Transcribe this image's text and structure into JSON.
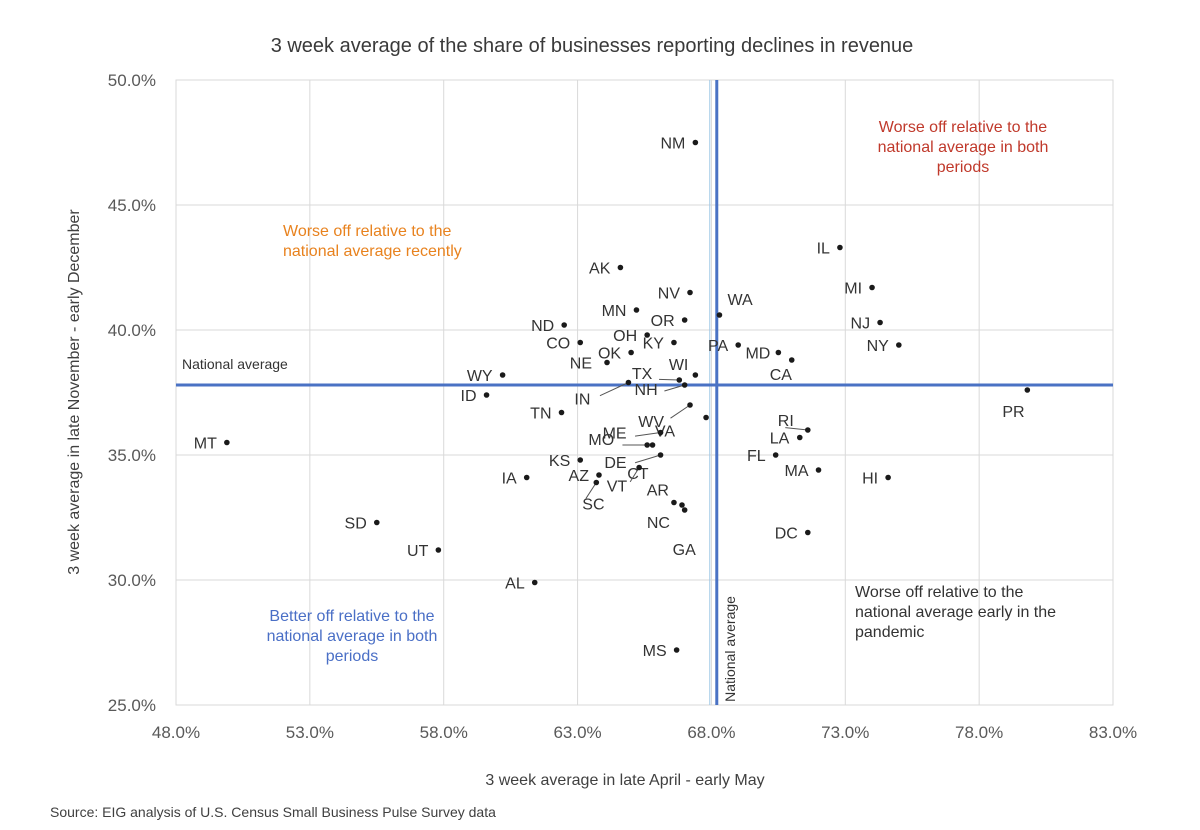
{
  "chart_data": {
    "type": "scatter",
    "title": "3 week average of the share of businesses reporting declines in revenue",
    "xlabel": "3 week average in late April - early May",
    "ylabel": "3 week average in late November - early December",
    "xlim": [
      48,
      83
    ],
    "ylim": [
      25,
      50
    ],
    "x_ticks": [
      48,
      53,
      58,
      63,
      68,
      73,
      78,
      83
    ],
    "y_ticks": [
      25,
      30,
      35,
      40,
      45,
      50
    ],
    "x_tick_labels": [
      "48.0%",
      "53.0%",
      "58.0%",
      "63.0%",
      "68.0%",
      "73.0%",
      "78.0%",
      "83.0%"
    ],
    "y_tick_labels": [
      "25.0%",
      "30.0%",
      "35.0%",
      "40.0%",
      "45.0%",
      "50.0%"
    ],
    "grid": true,
    "national_average": {
      "x": 68.2,
      "y": 37.8,
      "h_label": "National average",
      "v_label": "National average"
    },
    "points": [
      {
        "label": "NM",
        "x": 67.4,
        "y": 47.5
      },
      {
        "label": "IL",
        "x": 72.8,
        "y": 43.3
      },
      {
        "label": "AK",
        "x": 64.6,
        "y": 42.5
      },
      {
        "label": "MI",
        "x": 74.0,
        "y": 41.7
      },
      {
        "label": "NV",
        "x": 67.2,
        "y": 41.5
      },
      {
        "label": "WA",
        "x": 68.3,
        "y": 40.6
      },
      {
        "label": "MN",
        "x": 65.2,
        "y": 40.8
      },
      {
        "label": "NJ",
        "x": 74.3,
        "y": 40.3
      },
      {
        "label": "OR",
        "x": 67.0,
        "y": 40.4
      },
      {
        "label": "ND",
        "x": 62.5,
        "y": 40.2
      },
      {
        "label": "OH",
        "x": 65.6,
        "y": 39.8
      },
      {
        "label": "CO",
        "x": 63.1,
        "y": 39.5
      },
      {
        "label": "PA",
        "x": 69.0,
        "y": 39.4
      },
      {
        "label": "NY",
        "x": 75.0,
        "y": 39.4
      },
      {
        "label": "OK",
        "x": 65.0,
        "y": 39.1
      },
      {
        "label": "KY",
        "x": 66.6,
        "y": 39.5
      },
      {
        "label": "MD",
        "x": 70.5,
        "y": 39.1
      },
      {
        "label": "CA",
        "x": 71.0,
        "y": 38.8
      },
      {
        "label": "NE",
        "x": 64.1,
        "y": 38.7
      },
      {
        "label": "WY",
        "x": 60.2,
        "y": 38.2
      },
      {
        "label": "TX",
        "x": 66.8,
        "y": 38.0
      },
      {
        "label": "WI",
        "x": 67.4,
        "y": 38.2
      },
      {
        "label": "NH",
        "x": 67.0,
        "y": 37.8
      },
      {
        "label": "IN",
        "x": 64.9,
        "y": 37.9
      },
      {
        "label": "PR",
        "x": 79.8,
        "y": 37.6
      },
      {
        "label": "ID",
        "x": 59.6,
        "y": 37.4
      },
      {
        "label": "WV",
        "x": 67.2,
        "y": 37.0
      },
      {
        "label": "TN",
        "x": 62.4,
        "y": 36.7
      },
      {
        "label": "VA",
        "x": 67.8,
        "y": 36.5
      },
      {
        "label": "RI",
        "x": 71.6,
        "y": 36.0
      },
      {
        "label": "ME",
        "x": 66.1,
        "y": 35.9
      },
      {
        "label": "LA",
        "x": 71.3,
        "y": 35.7
      },
      {
        "label": "CT",
        "x": 65.8,
        "y": 35.4
      },
      {
        "label": "MO",
        "x": 65.6,
        "y": 35.4
      },
      {
        "label": "MT",
        "x": 49.9,
        "y": 35.5
      },
      {
        "label": "DE",
        "x": 66.1,
        "y": 35.0
      },
      {
        "label": "FL",
        "x": 70.4,
        "y": 35.0
      },
      {
        "label": "KS",
        "x": 63.1,
        "y": 34.8
      },
      {
        "label": "VT",
        "x": 65.3,
        "y": 34.5
      },
      {
        "label": "MA",
        "x": 72.0,
        "y": 34.4
      },
      {
        "label": "IA",
        "x": 61.1,
        "y": 34.1
      },
      {
        "label": "HI",
        "x": 74.6,
        "y": 34.1
      },
      {
        "label": "AZ",
        "x": 63.8,
        "y": 34.2
      },
      {
        "label": "SC",
        "x": 63.7,
        "y": 33.9
      },
      {
        "label": "AR",
        "x": 66.6,
        "y": 33.1
      },
      {
        "label": "NC",
        "x": 66.9,
        "y": 33.0
      },
      {
        "label": "GA",
        "x": 67.0,
        "y": 32.8
      },
      {
        "label": "SD",
        "x": 55.5,
        "y": 32.3
      },
      {
        "label": "DC",
        "x": 71.6,
        "y": 31.9
      },
      {
        "label": "UT",
        "x": 57.8,
        "y": 31.2
      },
      {
        "label": "AL",
        "x": 61.4,
        "y": 29.9
      },
      {
        "label": "MS",
        "x": 66.7,
        "y": 27.2
      }
    ],
    "annotations": [
      {
        "id": "top-right",
        "lines": [
          "Worse off relative to the",
          "national average in both",
          "periods"
        ],
        "color": "#c0392b"
      },
      {
        "id": "top-left",
        "lines": [
          "Worse off relative to the",
          "national average recently"
        ],
        "color": "#e8821e"
      },
      {
        "id": "bottom-left",
        "lines": [
          "Better off relative to the",
          "national average in both",
          "periods"
        ],
        "color": "#4a6fc6"
      },
      {
        "id": "bottom-right",
        "lines": [
          "Worse off relative to the",
          "national average early in the",
          "pandemic"
        ],
        "color": "#333333"
      }
    ],
    "source": "Source: EIG analysis of U.S. Census Small Business Pulse Survey data"
  }
}
